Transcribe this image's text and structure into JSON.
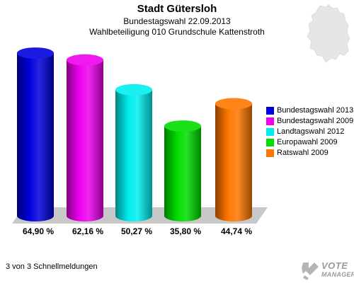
{
  "header": {
    "title": "Stadt Gütersloh",
    "subtitle1": "Bundestagswahl 22.09.2013",
    "subtitle2": "Wahlbeteiligung 010 Grundschule Kattenstroth"
  },
  "footer": {
    "note": "3 von 3 Schnellmeldungen",
    "logo_line1": "VOTE",
    "logo_line2": "MANAGER"
  },
  "chart_data": {
    "type": "bar",
    "title": "Stadt Gütersloh",
    "categories": [
      "Bundestagswahl 2013",
      "Bundestagswahl 2009",
      "Landtagswahl 2012",
      "Europawahl 2009",
      "Ratswahl 2009"
    ],
    "values": [
      64.9,
      62.16,
      50.27,
      35.8,
      44.74
    ],
    "value_labels": [
      "64,90 %",
      "62,16 %",
      "50,27 %",
      "35,80 %",
      "44,74 %"
    ],
    "colors": [
      "#0000dd",
      "#ee00ee",
      "#00eeee",
      "#00dd00",
      "#ff7700"
    ],
    "ylim": [
      0,
      70
    ],
    "grid": false,
    "legend_placement": "right"
  }
}
